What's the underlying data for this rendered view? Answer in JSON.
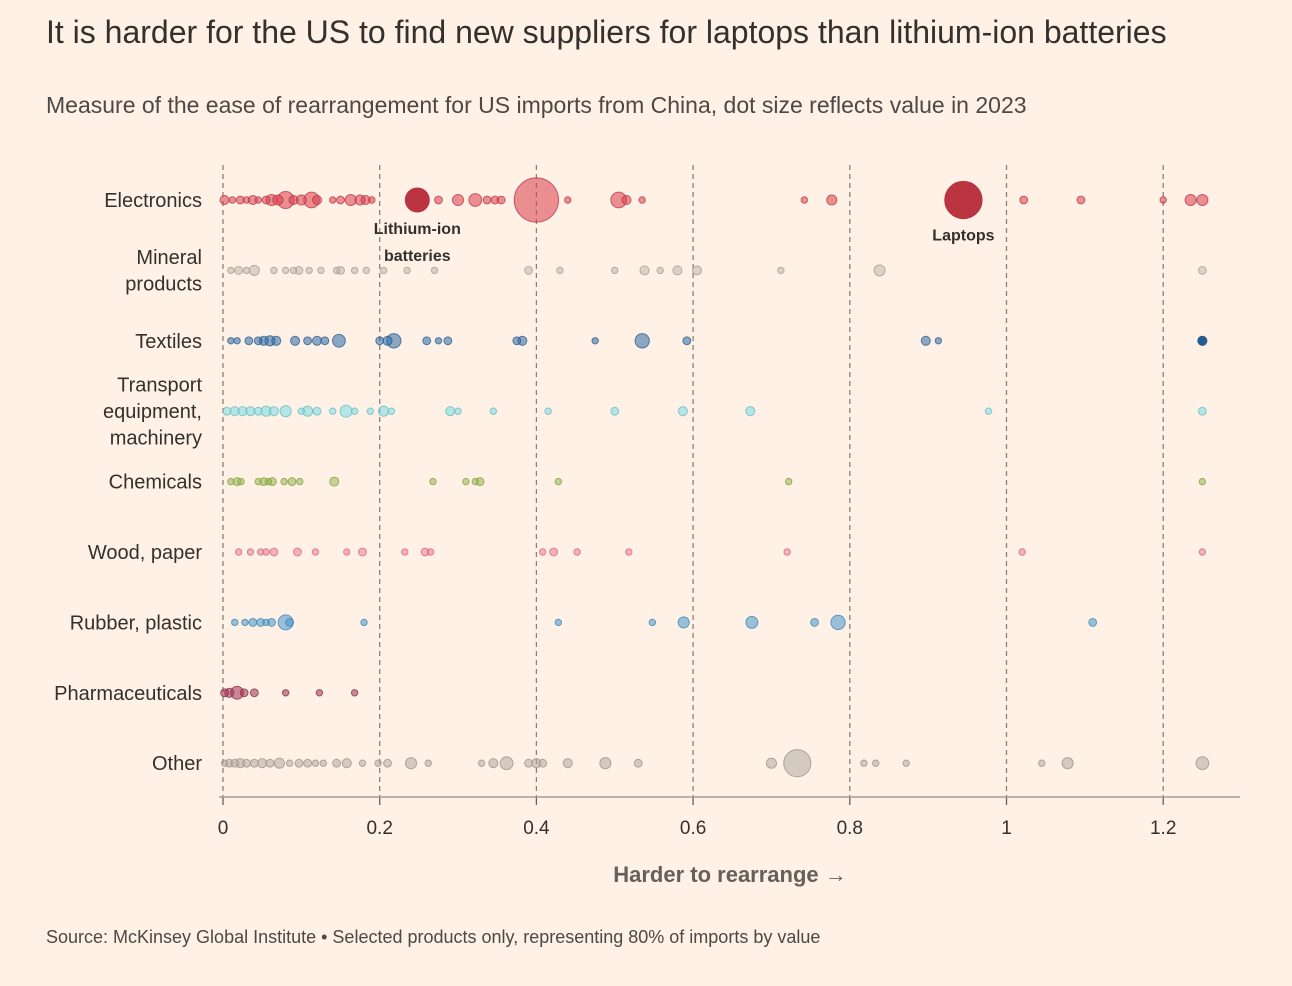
{
  "title": "It is harder for the US to find new suppliers for laptops than lithium-ion batteries",
  "subtitle": "Measure of the ease of rearrangement for US imports from China, dot size reflects value in 2023",
  "footer": "Source: McKinsey Global Institute • Selected products only, representing 80% of imports by value",
  "chart_data": {
    "type": "scatter",
    "xlabel": "Harder to rearrange →",
    "xlim": [
      0,
      1.3
    ],
    "xticks": [
      0,
      0.2,
      0.4,
      0.6,
      0.8,
      1,
      1.2
    ],
    "xtick_labels": [
      "0",
      "0.2",
      "0.4",
      "0.6",
      "0.8",
      "1",
      "1.2"
    ],
    "gridlines": "dashed vertical at ticks",
    "size_meaning": "dot size reflects value in 2023",
    "categories": [
      "Electronics",
      "Mineral products",
      "Textiles",
      "Transport equipment, machinery",
      "Chemicals",
      "Wood, paper",
      "Rubber, plastic",
      "Pharmaceuticals",
      "Other"
    ],
    "category_label_lines": [
      [
        "Electronics"
      ],
      [
        "Mineral",
        "products"
      ],
      [
        "Textiles"
      ],
      [
        "Transport",
        "equipment,",
        "machinery"
      ],
      [
        "Chemicals"
      ],
      [
        "Wood, paper"
      ],
      [
        "Rubber, plastic"
      ],
      [
        "Pharmaceuticals"
      ],
      [
        "Other"
      ]
    ],
    "series": [
      {
        "category": "Electronics",
        "color": "#d83d4c",
        "points": [
          {
            "x": 0.002,
            "s": 2
          },
          {
            "x": 0.012,
            "s": 1
          },
          {
            "x": 0.022,
            "s": 1.5
          },
          {
            "x": 0.03,
            "s": 1
          },
          {
            "x": 0.038,
            "s": 2
          },
          {
            "x": 0.045,
            "s": 1
          },
          {
            "x": 0.055,
            "s": 1.5
          },
          {
            "x": 0.062,
            "s": 3
          },
          {
            "x": 0.07,
            "s": 2.5
          },
          {
            "x": 0.08,
            "s": 7
          },
          {
            "x": 0.09,
            "s": 2
          },
          {
            "x": 0.1,
            "s": 2.5
          },
          {
            "x": 0.113,
            "s": 6
          },
          {
            "x": 0.12,
            "s": 2
          },
          {
            "x": 0.14,
            "s": 1
          },
          {
            "x": 0.15,
            "s": 1.5
          },
          {
            "x": 0.163,
            "s": 3
          },
          {
            "x": 0.175,
            "s": 2.5
          },
          {
            "x": 0.182,
            "s": 2
          },
          {
            "x": 0.19,
            "s": 1
          },
          {
            "x": 0.248,
            "s": 14,
            "dark": true,
            "label": "Lithium-ion batteries"
          },
          {
            "x": 0.275,
            "s": 1.5
          },
          {
            "x": 0.3,
            "s": 3
          },
          {
            "x": 0.322,
            "s": 4
          },
          {
            "x": 0.337,
            "s": 1.5
          },
          {
            "x": 0.347,
            "s": 1.5
          },
          {
            "x": 0.355,
            "s": 1.5
          },
          {
            "x": 0.4,
            "s": 48
          },
          {
            "x": 0.44,
            "s": 1
          },
          {
            "x": 0.505,
            "s": 6
          },
          {
            "x": 0.515,
            "s": 2
          },
          {
            "x": 0.535,
            "s": 1
          },
          {
            "x": 0.742,
            "s": 1
          },
          {
            "x": 0.777,
            "s": 2.5
          },
          {
            "x": 0.945,
            "s": 34,
            "dark": true,
            "label": "Laptops"
          },
          {
            "x": 1.022,
            "s": 1.5
          },
          {
            "x": 1.095,
            "s": 1.5
          },
          {
            "x": 1.2,
            "s": 1
          },
          {
            "x": 1.235,
            "s": 3
          },
          {
            "x": 1.25,
            "s": 3
          }
        ]
      },
      {
        "category": "Mineral products",
        "color": "#c1b4ab",
        "points": [
          {
            "x": 0.01,
            "s": 1
          },
          {
            "x": 0.02,
            "s": 1.5
          },
          {
            "x": 0.03,
            "s": 1
          },
          {
            "x": 0.04,
            "s": 2.5
          },
          {
            "x": 0.065,
            "s": 1
          },
          {
            "x": 0.08,
            "s": 1
          },
          {
            "x": 0.09,
            "s": 1
          },
          {
            "x": 0.097,
            "s": 1.5
          },
          {
            "x": 0.11,
            "s": 1
          },
          {
            "x": 0.125,
            "s": 1
          },
          {
            "x": 0.145,
            "s": 1
          },
          {
            "x": 0.15,
            "s": 1.5
          },
          {
            "x": 0.168,
            "s": 1
          },
          {
            "x": 0.183,
            "s": 1
          },
          {
            "x": 0.205,
            "s": 1
          },
          {
            "x": 0.235,
            "s": 1
          },
          {
            "x": 0.27,
            "s": 1
          },
          {
            "x": 0.39,
            "s": 1.5
          },
          {
            "x": 0.43,
            "s": 1
          },
          {
            "x": 0.5,
            "s": 1
          },
          {
            "x": 0.538,
            "s": 2
          },
          {
            "x": 0.558,
            "s": 1
          },
          {
            "x": 0.58,
            "s": 2
          },
          {
            "x": 0.605,
            "s": 2
          },
          {
            "x": 0.712,
            "s": 1
          },
          {
            "x": 0.838,
            "s": 3
          },
          {
            "x": 1.25,
            "s": 1.5
          }
        ]
      },
      {
        "category": "Textiles",
        "color": "#2e6aa6",
        "points": [
          {
            "x": 0.01,
            "s": 1
          },
          {
            "x": 0.018,
            "s": 1
          },
          {
            "x": 0.033,
            "s": 1.5
          },
          {
            "x": 0.045,
            "s": 1.5
          },
          {
            "x": 0.052,
            "s": 2
          },
          {
            "x": 0.06,
            "s": 2.5
          },
          {
            "x": 0.068,
            "s": 2
          },
          {
            "x": 0.092,
            "s": 2
          },
          {
            "x": 0.108,
            "s": 1.5
          },
          {
            "x": 0.12,
            "s": 2
          },
          {
            "x": 0.13,
            "s": 1.5
          },
          {
            "x": 0.148,
            "s": 4
          },
          {
            "x": 0.2,
            "s": 1.5
          },
          {
            "x": 0.21,
            "s": 2
          },
          {
            "x": 0.218,
            "s": 5
          },
          {
            "x": 0.26,
            "s": 1.5
          },
          {
            "x": 0.275,
            "s": 1
          },
          {
            "x": 0.287,
            "s": 1.5
          },
          {
            "x": 0.375,
            "s": 1.5
          },
          {
            "x": 0.382,
            "s": 2
          },
          {
            "x": 0.475,
            "s": 1
          },
          {
            "x": 0.535,
            "s": 5
          },
          {
            "x": 0.592,
            "s": 1.5
          },
          {
            "x": 0.897,
            "s": 2
          },
          {
            "x": 0.913,
            "s": 1
          },
          {
            "x": 1.25,
            "s": 2,
            "dark": true
          }
        ]
      },
      {
        "category": "Transport equipment, machinery",
        "color": "#78dbe6",
        "points": [
          {
            "x": 0.005,
            "s": 1.5
          },
          {
            "x": 0.015,
            "s": 2
          },
          {
            "x": 0.025,
            "s": 2
          },
          {
            "x": 0.035,
            "s": 2
          },
          {
            "x": 0.045,
            "s": 1.5
          },
          {
            "x": 0.055,
            "s": 2.5
          },
          {
            "x": 0.065,
            "s": 2
          },
          {
            "x": 0.08,
            "s": 3
          },
          {
            "x": 0.1,
            "s": 1
          },
          {
            "x": 0.108,
            "s": 2.5
          },
          {
            "x": 0.12,
            "s": 1.5
          },
          {
            "x": 0.14,
            "s": 1
          },
          {
            "x": 0.157,
            "s": 3.5
          },
          {
            "x": 0.168,
            "s": 1
          },
          {
            "x": 0.188,
            "s": 1
          },
          {
            "x": 0.205,
            "s": 2.5
          },
          {
            "x": 0.215,
            "s": 1
          },
          {
            "x": 0.29,
            "s": 2
          },
          {
            "x": 0.3,
            "s": 1
          },
          {
            "x": 0.345,
            "s": 1
          },
          {
            "x": 0.415,
            "s": 1
          },
          {
            "x": 0.5,
            "s": 1.5
          },
          {
            "x": 0.587,
            "s": 2
          },
          {
            "x": 0.673,
            "s": 2
          },
          {
            "x": 0.977,
            "s": 1
          },
          {
            "x": 1.25,
            "s": 1.5
          }
        ]
      },
      {
        "category": "Chemicals",
        "color": "#96b84c",
        "points": [
          {
            "x": 0.01,
            "s": 1
          },
          {
            "x": 0.018,
            "s": 1.5
          },
          {
            "x": 0.023,
            "s": 1
          },
          {
            "x": 0.045,
            "s": 1
          },
          {
            "x": 0.052,
            "s": 1.5
          },
          {
            "x": 0.058,
            "s": 1
          },
          {
            "x": 0.063,
            "s": 1.5
          },
          {
            "x": 0.078,
            "s": 1
          },
          {
            "x": 0.088,
            "s": 1.5
          },
          {
            "x": 0.098,
            "s": 1
          },
          {
            "x": 0.142,
            "s": 2
          },
          {
            "x": 0.268,
            "s": 1
          },
          {
            "x": 0.31,
            "s": 1
          },
          {
            "x": 0.322,
            "s": 1
          },
          {
            "x": 0.328,
            "s": 1.5
          },
          {
            "x": 0.428,
            "s": 1
          },
          {
            "x": 0.722,
            "s": 1
          },
          {
            "x": 1.25,
            "s": 1
          }
        ]
      },
      {
        "category": "Wood, paper",
        "color": "#f07a93",
        "points": [
          {
            "x": 0.02,
            "s": 1
          },
          {
            "x": 0.035,
            "s": 1
          },
          {
            "x": 0.048,
            "s": 1
          },
          {
            "x": 0.055,
            "s": 1
          },
          {
            "x": 0.065,
            "s": 1.5
          },
          {
            "x": 0.095,
            "s": 1.5
          },
          {
            "x": 0.118,
            "s": 1
          },
          {
            "x": 0.158,
            "s": 1
          },
          {
            "x": 0.178,
            "s": 1.5
          },
          {
            "x": 0.232,
            "s": 1
          },
          {
            "x": 0.258,
            "s": 1.5
          },
          {
            "x": 0.265,
            "s": 1
          },
          {
            "x": 0.408,
            "s": 1
          },
          {
            "x": 0.422,
            "s": 1.5
          },
          {
            "x": 0.452,
            "s": 1
          },
          {
            "x": 0.518,
            "s": 1
          },
          {
            "x": 0.72,
            "s": 1
          },
          {
            "x": 1.02,
            "s": 1
          },
          {
            "x": 1.25,
            "s": 1
          }
        ]
      },
      {
        "category": "Rubber, plastic",
        "color": "#4798d0",
        "points": [
          {
            "x": 0.015,
            "s": 1
          },
          {
            "x": 0.028,
            "s": 1
          },
          {
            "x": 0.038,
            "s": 1.5
          },
          {
            "x": 0.048,
            "s": 1.5
          },
          {
            "x": 0.055,
            "s": 1
          },
          {
            "x": 0.062,
            "s": 1.5
          },
          {
            "x": 0.08,
            "s": 5.5
          },
          {
            "x": 0.085,
            "s": 1.5
          },
          {
            "x": 0.18,
            "s": 1
          },
          {
            "x": 0.428,
            "s": 1
          },
          {
            "x": 0.548,
            "s": 1
          },
          {
            "x": 0.588,
            "s": 3
          },
          {
            "x": 0.675,
            "s": 3.5
          },
          {
            "x": 0.755,
            "s": 1.5
          },
          {
            "x": 0.785,
            "s": 5
          },
          {
            "x": 1.11,
            "s": 1.5
          }
        ]
      },
      {
        "category": "Pharmaceuticals",
        "color": "#9e2f50",
        "points": [
          {
            "x": 0.002,
            "s": 1.5
          },
          {
            "x": 0.008,
            "s": 2
          },
          {
            "x": 0.018,
            "s": 4
          },
          {
            "x": 0.027,
            "s": 1.5
          },
          {
            "x": 0.04,
            "s": 1.5
          },
          {
            "x": 0.08,
            "s": 1
          },
          {
            "x": 0.123,
            "s": 1
          },
          {
            "x": 0.168,
            "s": 1
          }
        ]
      },
      {
        "category": "Other",
        "color": "#b3a9a2",
        "points": [
          {
            "x": 0.002,
            "s": 1
          },
          {
            "x": 0.008,
            "s": 1.5
          },
          {
            "x": 0.015,
            "s": 1.5
          },
          {
            "x": 0.022,
            "s": 2
          },
          {
            "x": 0.03,
            "s": 1.5
          },
          {
            "x": 0.04,
            "s": 1.5
          },
          {
            "x": 0.05,
            "s": 2
          },
          {
            "x": 0.06,
            "s": 1.5
          },
          {
            "x": 0.072,
            "s": 2.5
          },
          {
            "x": 0.085,
            "s": 1
          },
          {
            "x": 0.097,
            "s": 1.5
          },
          {
            "x": 0.108,
            "s": 1.5
          },
          {
            "x": 0.118,
            "s": 1
          },
          {
            "x": 0.128,
            "s": 1
          },
          {
            "x": 0.145,
            "s": 1.5
          },
          {
            "x": 0.158,
            "s": 2
          },
          {
            "x": 0.178,
            "s": 1
          },
          {
            "x": 0.198,
            "s": 1
          },
          {
            "x": 0.21,
            "s": 1.5
          },
          {
            "x": 0.24,
            "s": 3
          },
          {
            "x": 0.262,
            "s": 1
          },
          {
            "x": 0.33,
            "s": 1
          },
          {
            "x": 0.345,
            "s": 2
          },
          {
            "x": 0.362,
            "s": 4
          },
          {
            "x": 0.39,
            "s": 1.5
          },
          {
            "x": 0.4,
            "s": 2
          },
          {
            "x": 0.408,
            "s": 1.5
          },
          {
            "x": 0.44,
            "s": 2
          },
          {
            "x": 0.488,
            "s": 3
          },
          {
            "x": 0.53,
            "s": 1.5
          },
          {
            "x": 0.7,
            "s": 2.5
          },
          {
            "x": 0.733,
            "s": 18
          },
          {
            "x": 0.818,
            "s": 1
          },
          {
            "x": 0.833,
            "s": 1
          },
          {
            "x": 0.872,
            "s": 1
          },
          {
            "x": 1.045,
            "s": 1
          },
          {
            "x": 1.078,
            "s": 3
          },
          {
            "x": 1.25,
            "s": 4
          }
        ]
      }
    ]
  }
}
